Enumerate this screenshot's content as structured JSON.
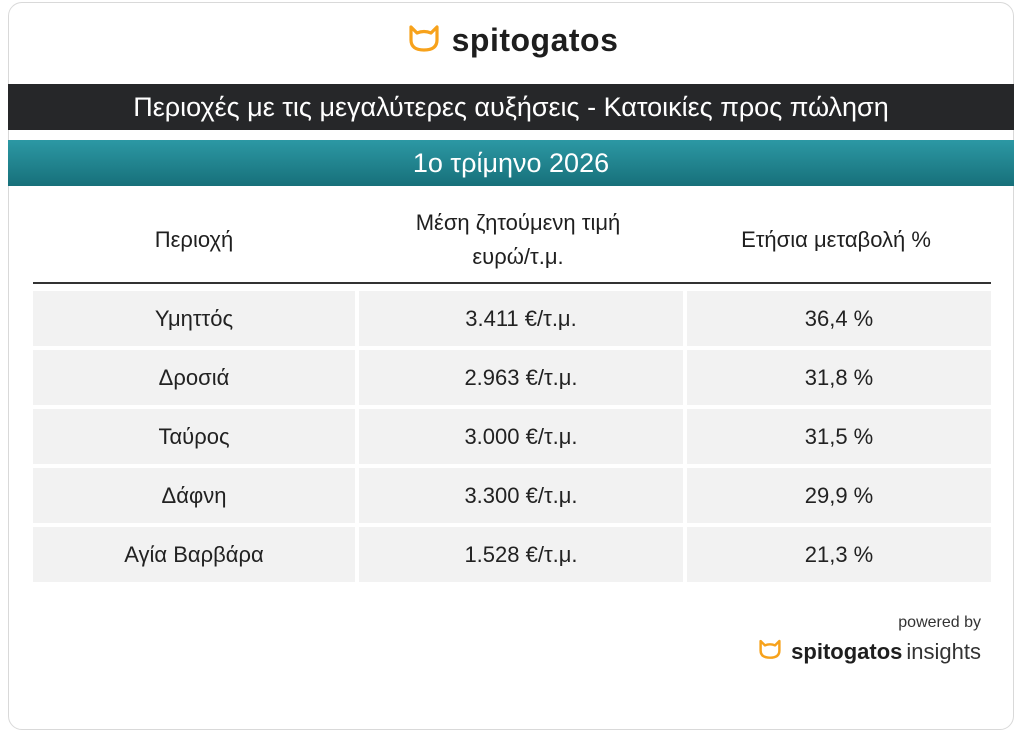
{
  "brand": {
    "name": "spitogatos",
    "accent": "#f7a21b"
  },
  "title": "Περιοχές με τις μεγαλύτερες αυξήσεις - Κατοικίες προς πώληση",
  "subtitle": "1ο τρίμηνο 2026",
  "table": {
    "headers": {
      "area": "Περιοχή",
      "price_line1": "Μέση ζητούμενη τιμή",
      "price_line2": "ευρώ/τ.μ.",
      "change": "Ετήσια μεταβολή %"
    },
    "rows": [
      {
        "area": "Υμηττός",
        "price": "3.411 €/τ.μ.",
        "change": "36,4 %"
      },
      {
        "area": "Δροσιά",
        "price": "2.963 €/τ.μ.",
        "change": "31,8 %"
      },
      {
        "area": "Ταύρος",
        "price": "3.000 €/τ.μ.",
        "change": "31,5 %"
      },
      {
        "area": "Δάφνη",
        "price": "3.300 €/τ.μ.",
        "change": "29,9 %"
      },
      {
        "area": "Αγία Βαρβάρα",
        "price": "1.528 €/τ.μ.",
        "change": "21,3 %"
      }
    ]
  },
  "footer": {
    "powered_by": "powered by",
    "brand_main": "spitogatos",
    "brand_sub": "insights"
  },
  "colors": {
    "title_bg": "#262729",
    "subtitle_bg": "#1f8590",
    "row_bg": "#f2f2f2"
  }
}
